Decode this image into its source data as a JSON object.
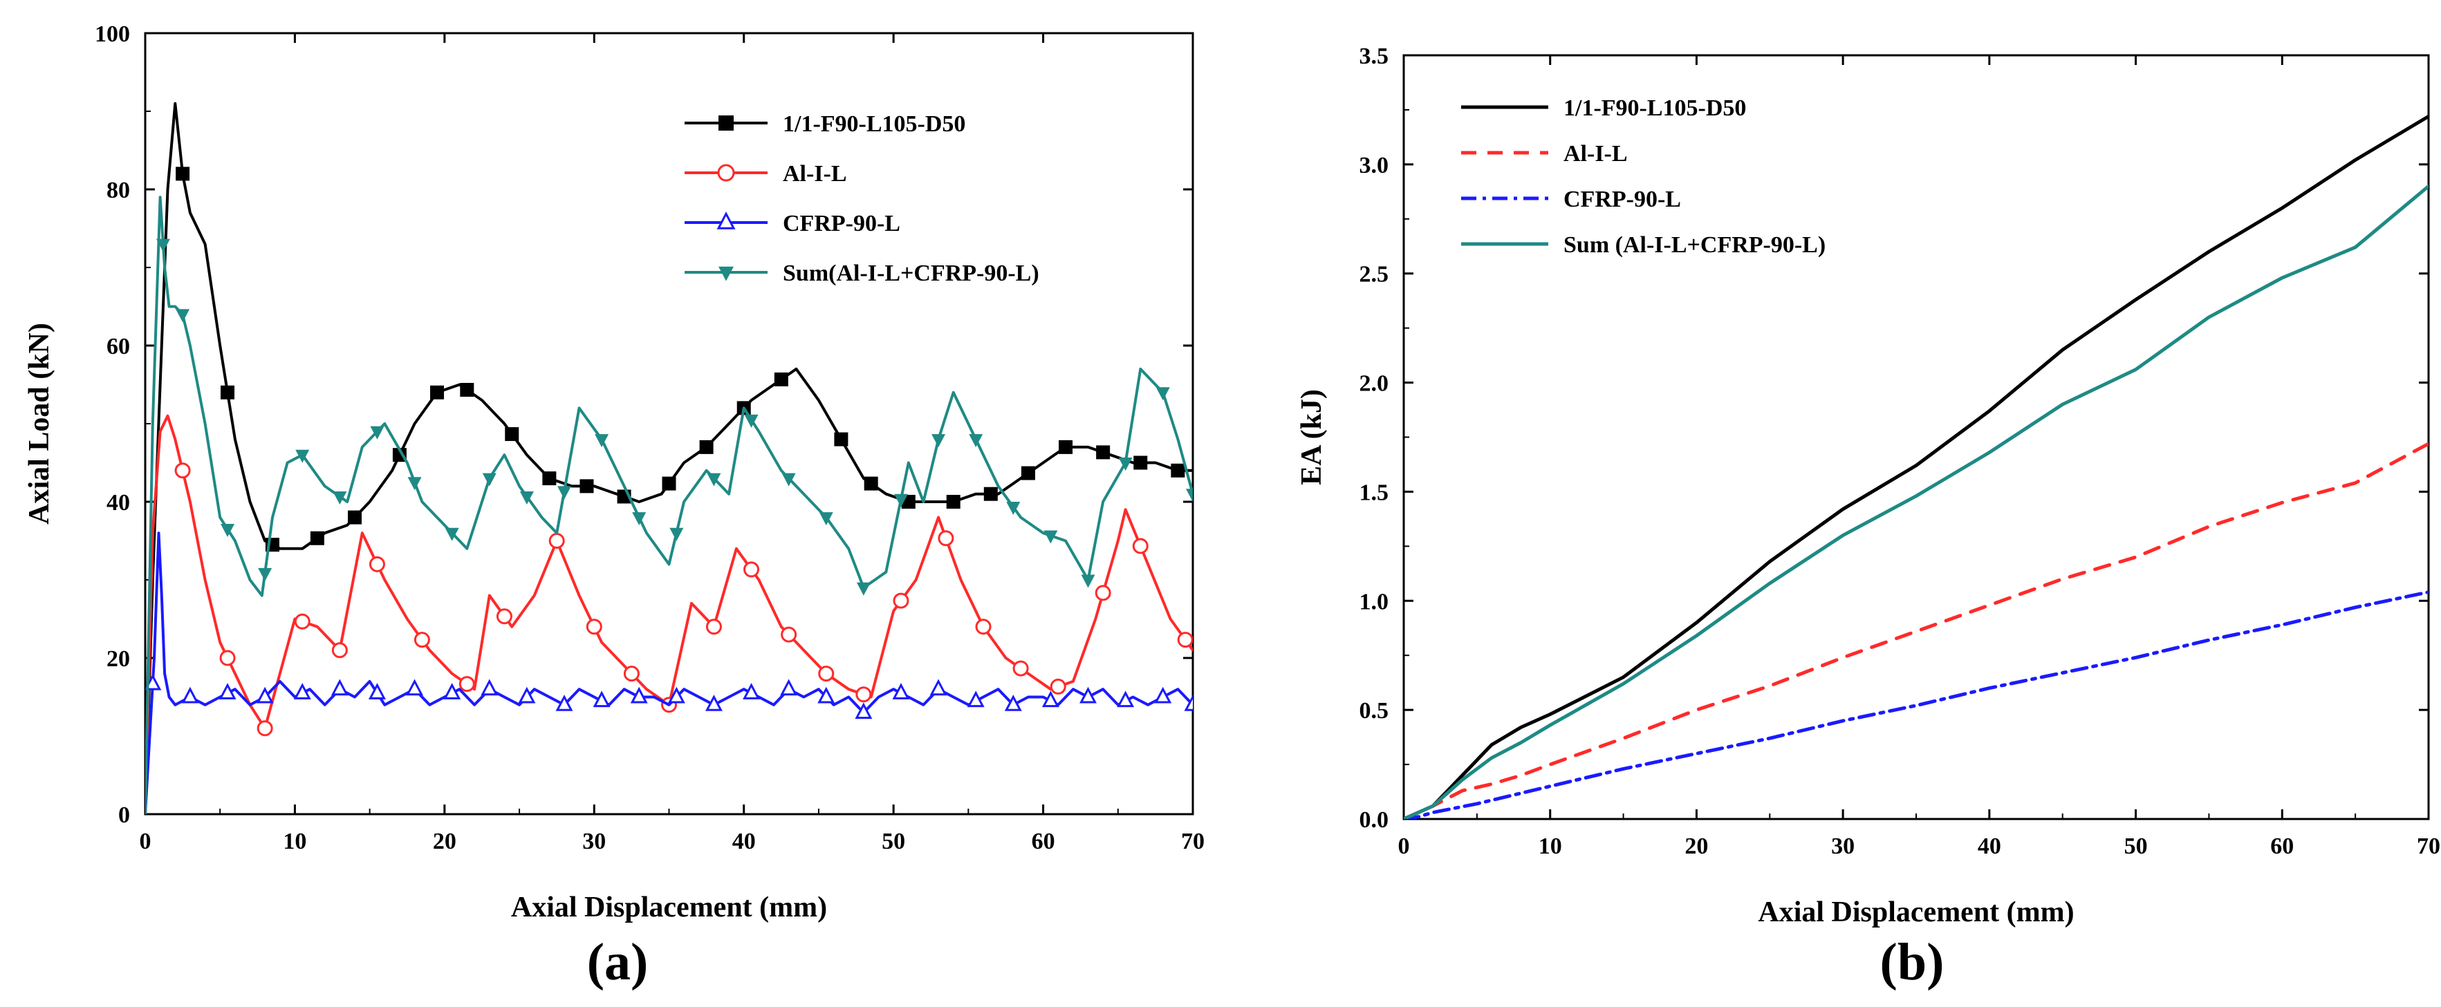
{
  "chart_data": [
    {
      "type": "line",
      "caption": "(a)",
      "xlabel": "Axial Displacement (mm)",
      "ylabel": "Axial Load (kN)",
      "xlim": [
        0,
        70
      ],
      "ylim": [
        0,
        100
      ],
      "xticks": [
        "0",
        "10",
        "20",
        "30",
        "40",
        "50",
        "60",
        "70"
      ],
      "yticks": [
        "0",
        "20",
        "40",
        "60",
        "80",
        "100"
      ],
      "legend_position": "top-right",
      "series": [
        {
          "name": "1/1-F90-L105-D50",
          "color": "#000000",
          "marker": "square",
          "dash": "",
          "x": [
            0,
            0.5,
            1.0,
            1.5,
            2.0,
            2.5,
            3.0,
            4.0,
            5.0,
            6.0,
            7.0,
            8.0,
            9.0,
            10.5,
            12.0,
            13.5,
            15.0,
            16.5,
            18.0,
            19.5,
            21.0,
            22.5,
            24.0,
            25.5,
            27.0,
            28.5,
            30.0,
            31.5,
            33.0,
            34.5,
            36.0,
            37.5,
            39.0,
            40.5,
            42.0,
            43.5,
            45.0,
            46.5,
            48.0,
            49.5,
            51.0,
            52.5,
            54.0,
            55.5,
            57.0,
            58.5,
            60.0,
            61.5,
            63.0,
            64.5,
            66.0,
            67.5,
            69.0,
            70.0
          ],
          "values": [
            0,
            30,
            55,
            80,
            91,
            82,
            77,
            73,
            60,
            48,
            40,
            35,
            34,
            34,
            36,
            37,
            40,
            44,
            50,
            54,
            55,
            53,
            50,
            46,
            43,
            42,
            42,
            41,
            40,
            41,
            45,
            47,
            50,
            53,
            55,
            57,
            53,
            48,
            43,
            41,
            40,
            40,
            40,
            41,
            41,
            43,
            45,
            47,
            47,
            46,
            45,
            45,
            44,
            44
          ],
          "markers_x": [
            2.5,
            5.5,
            8.5,
            11.5,
            14,
            17,
            19.5,
            21.5,
            24.5,
            27,
            29.5,
            32,
            35,
            37.5,
            40,
            42.5,
            46.5,
            48.5,
            51,
            54,
            56.5,
            59,
            61.5,
            64,
            66.5,
            69
          ]
        },
        {
          "name": "Al-I-L",
          "color": "#ff2a2a",
          "marker": "circle",
          "dash": "",
          "x": [
            0,
            0.5,
            1.0,
            1.5,
            2.0,
            3.0,
            4.0,
            5.0,
            6.0,
            7.0,
            8.0,
            9.0,
            10.0,
            11.5,
            13.0,
            14.5,
            16.0,
            17.5,
            19.0,
            20.5,
            22.0,
            23.0,
            24.5,
            26.0,
            27.5,
            29.0,
            30.5,
            32.0,
            33.5,
            35.0,
            36.5,
            38.0,
            39.5,
            41.0,
            42.5,
            44.0,
            45.5,
            47.0,
            48.5,
            50.0,
            51.5,
            53.0,
            54.5,
            56.0,
            57.5,
            59.0,
            60.5,
            62.0,
            63.5,
            65.0,
            65.5,
            67.0,
            68.5,
            70.0
          ],
          "values": [
            0,
            36,
            49,
            51,
            48,
            40,
            30,
            22,
            18,
            14,
            11,
            18,
            25,
            24,
            21,
            36,
            30,
            25,
            21,
            18,
            16,
            28,
            24,
            28,
            35,
            28,
            22,
            19,
            16,
            14,
            27,
            24,
            34,
            30,
            24,
            21,
            18,
            16,
            15,
            26,
            30,
            38,
            30,
            24,
            20,
            18,
            16,
            17,
            25,
            35,
            39,
            32,
            25,
            21
          ],
          "markers_x": [
            2.5,
            5.5,
            8,
            10.5,
            13,
            15.5,
            18.5,
            21.5,
            24,
            27.5,
            30,
            32.5,
            35,
            38,
            40.5,
            43,
            45.5,
            48,
            50.5,
            53.5,
            56,
            58.5,
            61,
            64,
            66.5,
            69.5
          ]
        },
        {
          "name": "CFRP-90-L",
          "color": "#1a1aff",
          "marker": "triangle-up",
          "dash": "",
          "x": [
            0,
            0.6,
            0.9,
            1.1,
            1.3,
            1.6,
            2.0,
            3,
            4,
            5,
            6,
            7,
            8,
            9,
            10,
            11,
            12,
            13,
            14,
            15,
            16,
            17,
            18,
            19,
            20,
            21,
            22,
            23,
            24,
            25,
            26,
            27,
            28,
            29,
            30,
            31,
            32,
            33,
            34,
            35,
            36,
            37,
            38,
            39,
            40,
            41,
            42,
            43,
            44,
            45,
            46,
            47,
            48,
            49,
            50,
            51,
            52,
            53,
            54,
            55,
            56,
            57,
            58,
            59,
            60,
            61,
            62,
            63,
            64,
            65,
            66,
            67,
            68,
            69,
            70
          ],
          "values": [
            0,
            20,
            36,
            28,
            18,
            15,
            14,
            15,
            14,
            15,
            16,
            14,
            15,
            17,
            15,
            16,
            14,
            16,
            15,
            17,
            14,
            15,
            16,
            14,
            15,
            16,
            14,
            16,
            15,
            14,
            16,
            15,
            14,
            16,
            15,
            14,
            16,
            15,
            15,
            14,
            16,
            15,
            14,
            15,
            16,
            15,
            14,
            16,
            15,
            16,
            14,
            15,
            13,
            15,
            16,
            15,
            14,
            16,
            15,
            14,
            15,
            16,
            14,
            15,
            15,
            14,
            16,
            15,
            16,
            14,
            15,
            14,
            15,
            16,
            14
          ],
          "markers_x": [
            0.5,
            3,
            5.5,
            8,
            10.5,
            13,
            15.5,
            18,
            20.5,
            23,
            25.5,
            28,
            30.5,
            33,
            35.5,
            38,
            40.5,
            43,
            45.5,
            48,
            50.5,
            53,
            55.5,
            58,
            60.5,
            63,
            65.5,
            68,
            70
          ]
        },
        {
          "name": "Sum(Al-I-L+CFRP-90-L)",
          "color": "#1f8a85",
          "marker": "triangle-down",
          "dash": "",
          "x": [
            0,
            0.5,
            1.0,
            1.3,
            1.6,
            2.0,
            2.5,
            3.0,
            4.0,
            5.0,
            6.0,
            7.0,
            7.8,
            8.5,
            9.5,
            10.5,
            12.0,
            13.5,
            14.5,
            16.0,
            17.5,
            18.5,
            20.0,
            21.5,
            23.0,
            24.0,
            25.0,
            26.5,
            27.5,
            29.0,
            30.5,
            32.0,
            33.5,
            35.0,
            36.0,
            37.5,
            39.0,
            40.0,
            41.0,
            42.5,
            44.0,
            45.5,
            47.0,
            48.0,
            49.5,
            51.0,
            52.0,
            53.0,
            54.0,
            55.5,
            57.0,
            58.5,
            60.0,
            61.5,
            63.0,
            64.0,
            65.5,
            66.5,
            68.0,
            69.0,
            70.0
          ],
          "values": [
            0,
            50,
            79,
            70,
            65,
            65,
            64,
            60,
            50,
            38,
            35,
            30,
            28,
            38,
            45,
            46,
            42,
            40,
            47,
            50,
            45,
            40,
            37,
            34,
            43,
            46,
            42,
            38,
            36,
            52,
            48,
            42,
            36,
            32,
            40,
            44,
            41,
            52,
            49,
            44,
            41,
            38,
            34,
            29,
            31,
            45,
            40,
            48,
            54,
            48,
            42,
            38,
            36,
            35,
            30,
            40,
            45,
            57,
            54,
            48,
            41
          ],
          "markers_x": [
            1.2,
            2.5,
            5.5,
            8,
            10.5,
            13,
            15.5,
            18,
            20.5,
            23,
            25.5,
            28,
            30.5,
            33,
            35.5,
            38,
            40.5,
            43,
            45.5,
            48,
            50.5,
            53,
            55.5,
            58,
            60.5,
            63,
            65.5,
            68,
            70
          ]
        }
      ]
    },
    {
      "type": "line",
      "caption": "(b)",
      "xlabel": "Axial Displacement (mm)",
      "ylabel": "EA (kJ)",
      "xlim": [
        0,
        70
      ],
      "ylim": [
        0,
        3.5
      ],
      "xticks": [
        "0",
        "10",
        "20",
        "30",
        "40",
        "50",
        "60",
        "70"
      ],
      "yticks": [
        "0.0",
        "0.5",
        "1.0",
        "1.5",
        "2.0",
        "2.5",
        "3.0",
        "3.5"
      ],
      "legend_position": "top-left",
      "series": [
        {
          "name": "1/1-F90-L105-D50",
          "color": "#000000",
          "dash": "",
          "x": [
            0,
            2,
            4,
            6,
            8,
            10,
            15,
            20,
            25,
            30,
            35,
            40,
            45,
            50,
            55,
            60,
            65,
            70
          ],
          "values": [
            0,
            0.06,
            0.2,
            0.34,
            0.42,
            0.48,
            0.65,
            0.9,
            1.18,
            1.42,
            1.62,
            1.87,
            2.15,
            2.38,
            2.6,
            2.8,
            3.02,
            3.22
          ]
        },
        {
          "name": "Al-I-L",
          "color": "#ff2a2a",
          "dash": "22 16",
          "x": [
            0,
            2,
            4,
            6,
            8,
            10,
            15,
            20,
            25,
            30,
            35,
            40,
            45,
            50,
            55,
            60,
            65,
            70
          ],
          "values": [
            0,
            0.06,
            0.13,
            0.16,
            0.2,
            0.25,
            0.37,
            0.5,
            0.61,
            0.74,
            0.86,
            0.98,
            1.1,
            1.2,
            1.34,
            1.45,
            1.54,
            1.72
          ]
        },
        {
          "name": "CFRP-90-L",
          "color": "#1a1aff",
          "dash": "22 9 5 9",
          "x": [
            0,
            1,
            2,
            5,
            10,
            15,
            20,
            25,
            30,
            35,
            40,
            45,
            50,
            55,
            60,
            65,
            70
          ],
          "values": [
            0,
            0.01,
            0.03,
            0.07,
            0.15,
            0.23,
            0.3,
            0.37,
            0.45,
            0.52,
            0.6,
            0.67,
            0.74,
            0.82,
            0.89,
            0.97,
            1.04
          ]
        },
        {
          "name": "Sum (Al-I-L+CFRP-90-L)",
          "color": "#1f8a85",
          "dash": "",
          "x": [
            0,
            2,
            4,
            6,
            8,
            10,
            15,
            20,
            25,
            30,
            35,
            40,
            45,
            50,
            55,
            60,
            65,
            70
          ],
          "values": [
            0,
            0.06,
            0.18,
            0.28,
            0.35,
            0.43,
            0.62,
            0.84,
            1.08,
            1.3,
            1.48,
            1.68,
            1.9,
            2.06,
            2.3,
            2.48,
            2.62,
            2.9
          ]
        }
      ]
    }
  ]
}
